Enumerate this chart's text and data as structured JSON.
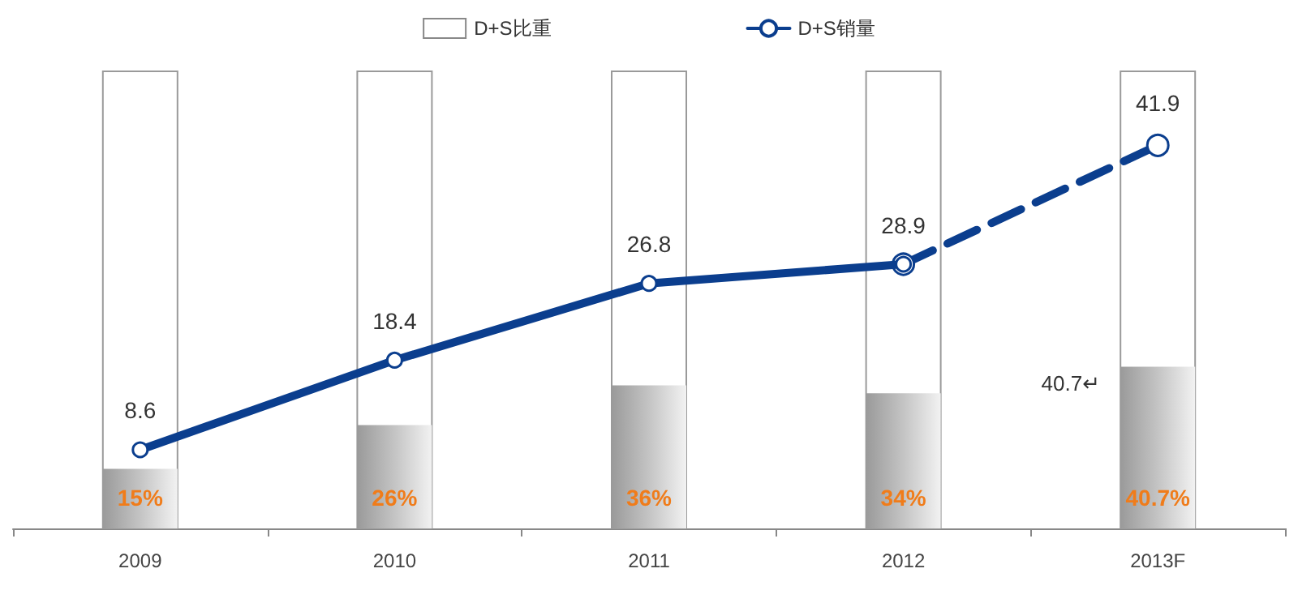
{
  "chart_data": {
    "type": "bar",
    "categories": [
      "2009",
      "2010",
      "2011",
      "2012",
      "2013F"
    ],
    "series": [
      {
        "name": "D+S比重",
        "color": "#c4c4c4",
        "values": [
          15,
          26,
          36,
          34,
          40.7
        ],
        "value_labels": [
          "15%",
          "26%",
          "36%",
          "34%",
          "40.7%"
        ]
      },
      {
        "name": "D+S销量",
        "type": "line",
        "axis": "y2",
        "color": "#0b3e8e",
        "values": [
          8.6,
          18.4,
          26.8,
          28.9,
          null
        ],
        "value_labels": [
          "8.6",
          "18.4",
          "26.8",
          "28.9",
          null
        ],
        "line_style": "solid"
      },
      {
        "type": "line",
        "axis": "y2",
        "color": "#0b3e8e",
        "values": [
          null,
          null,
          null,
          28.9,
          41.9
        ],
        "value_labels": [
          null,
          null,
          null,
          null,
          "41.9"
        ],
        "line_style": "dashed"
      }
    ],
    "ylim": [
      0,
      115
    ],
    "y2lim": [
      0,
      50
    ],
    "tick_labels": "x",
    "grid": false,
    "legend": "top",
    "marker": "circle",
    "annotations": [
      "40.7↵"
    ]
  }
}
